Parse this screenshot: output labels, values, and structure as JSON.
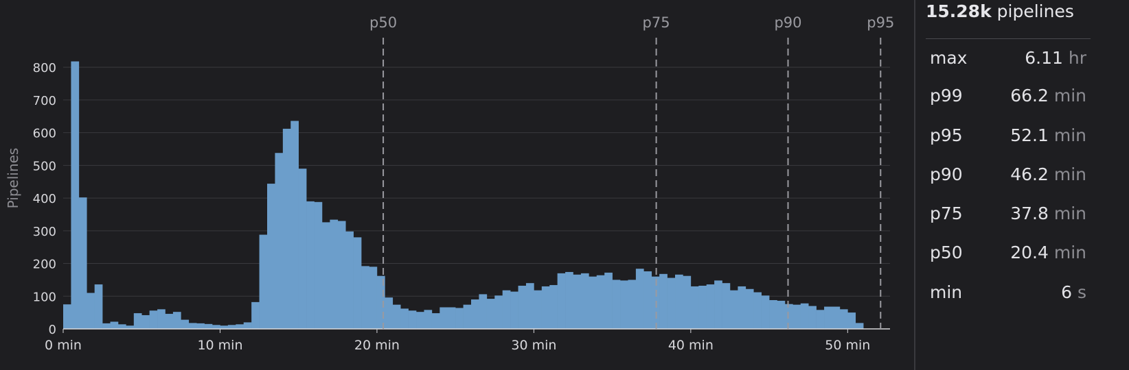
{
  "chart_data": {
    "type": "bar",
    "title": "",
    "ylabel": "Pipelines",
    "xlabel": "",
    "x_unit": "min",
    "xlim": [
      0,
      52.7
    ],
    "ylim": [
      0,
      880
    ],
    "x_ticks": [
      0,
      10,
      20,
      30,
      40,
      50
    ],
    "x_tick_labels": [
      "0 min",
      "10 min",
      "20 min",
      "30 min",
      "40 min",
      "50 min"
    ],
    "y_ticks": [
      0,
      100,
      200,
      300,
      400,
      500,
      600,
      700,
      800
    ],
    "y_tick_labels": [
      "0",
      "100",
      "200",
      "300",
      "400",
      "500",
      "600",
      "700",
      "800"
    ],
    "grid": true,
    "bin_width_min": 0.5,
    "bin_start_min": 0,
    "series": [
      {
        "color": "#6c9ecb",
        "values": [
          75,
          818,
          402,
          110,
          136,
          17,
          22,
          14,
          10,
          48,
          42,
          56,
          60,
          46,
          52,
          28,
          18,
          17,
          15,
          12,
          10,
          12,
          14,
          20,
          82,
          288,
          444,
          538,
          612,
          636,
          490,
          390,
          388,
          326,
          334,
          330,
          298,
          280,
          192,
          190,
          162,
          96,
          74,
          62,
          56,
          52,
          58,
          48,
          66,
          66,
          64,
          74,
          90,
          106,
          92,
          102,
          118,
          114,
          132,
          140,
          118,
          130,
          134,
          170,
          174,
          166,
          170,
          160,
          164,
          172,
          150,
          148,
          150,
          184,
          176,
          160,
          168,
          156,
          166,
          162,
          130,
          132,
          136,
          148,
          140,
          118,
          130,
          122,
          112,
          102,
          88,
          86,
          76,
          74,
          78,
          70,
          58,
          68,
          68,
          60,
          50,
          18
        ]
      }
    ],
    "markers": [
      {
        "label": "p50",
        "x": 20.4
      },
      {
        "label": "p75",
        "x": 37.8
      },
      {
        "label": "p90",
        "x": 46.2
      },
      {
        "label": "p95",
        "x": 52.1
      }
    ]
  },
  "stats": {
    "header_count": "15.28k",
    "header_label": " pipelines",
    "rows": [
      {
        "label": "max",
        "value": "6.11",
        "unit": " hr"
      },
      {
        "label": "p99",
        "value": "66.2",
        "unit": " min"
      },
      {
        "label": "p95",
        "value": "52.1",
        "unit": " min"
      },
      {
        "label": "p90",
        "value": "46.2",
        "unit": " min"
      },
      {
        "label": "p75",
        "value": "37.8",
        "unit": " min"
      },
      {
        "label": "p50",
        "value": "20.4",
        "unit": " min"
      },
      {
        "label": "min",
        "value": "6",
        "unit": " s"
      }
    ]
  },
  "colors": {
    "background": "#1e1e21",
    "bar": "#6c9ecb",
    "grid": "#3a3a3e",
    "marker": "#9a9aa0",
    "text": "#d8d8dc",
    "muted": "#8d8d93"
  }
}
